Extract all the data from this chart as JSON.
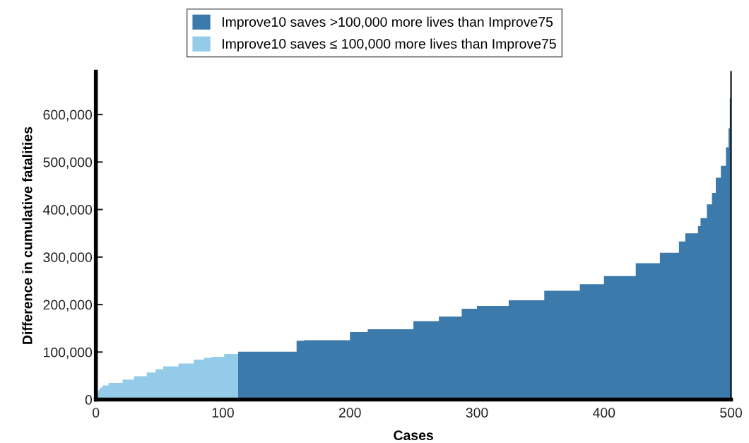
{
  "chart_data": {
    "type": "area",
    "xlabel": "Cases",
    "ylabel": "Difference in cumulative fatalities",
    "xlim": [
      0,
      500
    ],
    "xticks": [
      0,
      100,
      200,
      300,
      400,
      500
    ],
    "ylim": [
      0,
      690000
    ],
    "yticks": [
      0,
      {
        "value": 100000,
        "label": "100,000"
      },
      {
        "value": 200000,
        "label": "200,000"
      },
      {
        "value": 300000,
        "label": "300,000"
      },
      {
        "value": 400000,
        "label": "400,000"
      },
      {
        "value": 500000,
        "label": "500,000"
      },
      {
        "value": 600000,
        "label": "600,000"
      }
    ],
    "legend": "top",
    "grid": false,
    "series": [
      {
        "name": "Improve10 saves >100,000 more lives than Improve75",
        "color": "#3d7aac",
        "x": [
          112,
          158,
          164,
          200,
          214,
          250,
          270,
          288,
          300,
          325,
          353,
          381,
          400,
          425,
          444,
          459,
          464,
          474,
          476,
          481,
          485,
          488,
          492,
          496,
          498,
          499,
          500
        ],
        "values": [
          101000,
          124000,
          125000,
          142000,
          148000,
          165000,
          175000,
          191000,
          197000,
          209000,
          229000,
          243000,
          260000,
          287000,
          309000,
          333000,
          350000,
          365000,
          382000,
          411000,
          435000,
          467000,
          492000,
          531000,
          571000,
          634000,
          634000
        ]
      },
      {
        "name": "Improve10 saves ≤ 100,000 more lives than Improve75",
        "color": "#94cbe9",
        "x": [
          0,
          1,
          2,
          3,
          5,
          10,
          13,
          21,
          30,
          40,
          47,
          53,
          65,
          77,
          85,
          91,
          101,
          112
        ],
        "values": [
          8000,
          15000,
          20000,
          25000,
          30000,
          35000,
          35000,
          42000,
          49000,
          57000,
          64000,
          70000,
          76000,
          84000,
          88000,
          90000,
          96000,
          99000
        ]
      }
    ]
  }
}
